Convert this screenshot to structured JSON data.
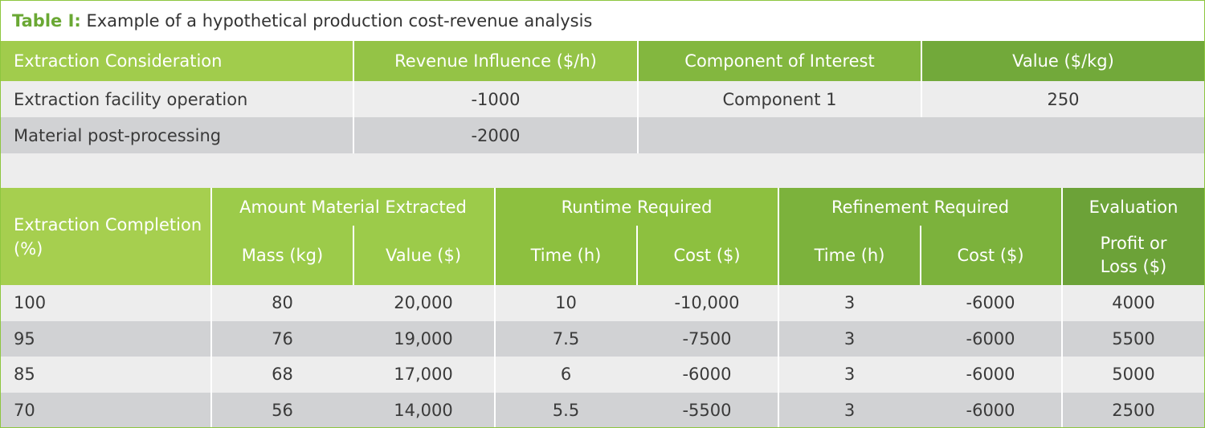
{
  "caption": {
    "label": "Table I:",
    "text": "Example of a hypothetical production cost-revenue analysis"
  },
  "table1": {
    "headers": [
      "Extraction Consideration",
      "Revenue Influence ($/h)",
      "Component of Interest",
      "Value ($/kg)"
    ],
    "rows": [
      [
        "Extraction facility operation",
        "-1000",
        "Component 1",
        "250"
      ],
      [
        "Material post-processing",
        "-2000",
        "",
        ""
      ]
    ]
  },
  "table2": {
    "first_header": "Extraction Completion (%)",
    "groups": [
      "Amount Material Extracted",
      "Runtime Required",
      "Refinement Required",
      "Evaluation"
    ],
    "subheaders": [
      "Mass (kg)",
      "Value ($)",
      "Time (h)",
      "Cost ($)",
      "Time (h)",
      "Cost ($)",
      "Profit or Loss ($)"
    ],
    "rows": [
      [
        "100",
        "80",
        "20,000",
        "10",
        "-10,000",
        "3",
        "-6000",
        "4000"
      ],
      [
        "95",
        "76",
        "19,000",
        "7.5",
        "-7500",
        "3",
        "-6000",
        "5500"
      ],
      [
        "85",
        "68",
        "17,000",
        "6",
        "-6000",
        "3",
        "-6000",
        "5000"
      ],
      [
        "70",
        "56",
        "14,000",
        "5.5",
        "-5500",
        "3",
        "-6000",
        "2500"
      ]
    ]
  },
  "colors": {
    "accent": "#8dc63f",
    "label": "#6aa834",
    "row_light": "#ededed",
    "row_dark": "#d1d2d4"
  }
}
